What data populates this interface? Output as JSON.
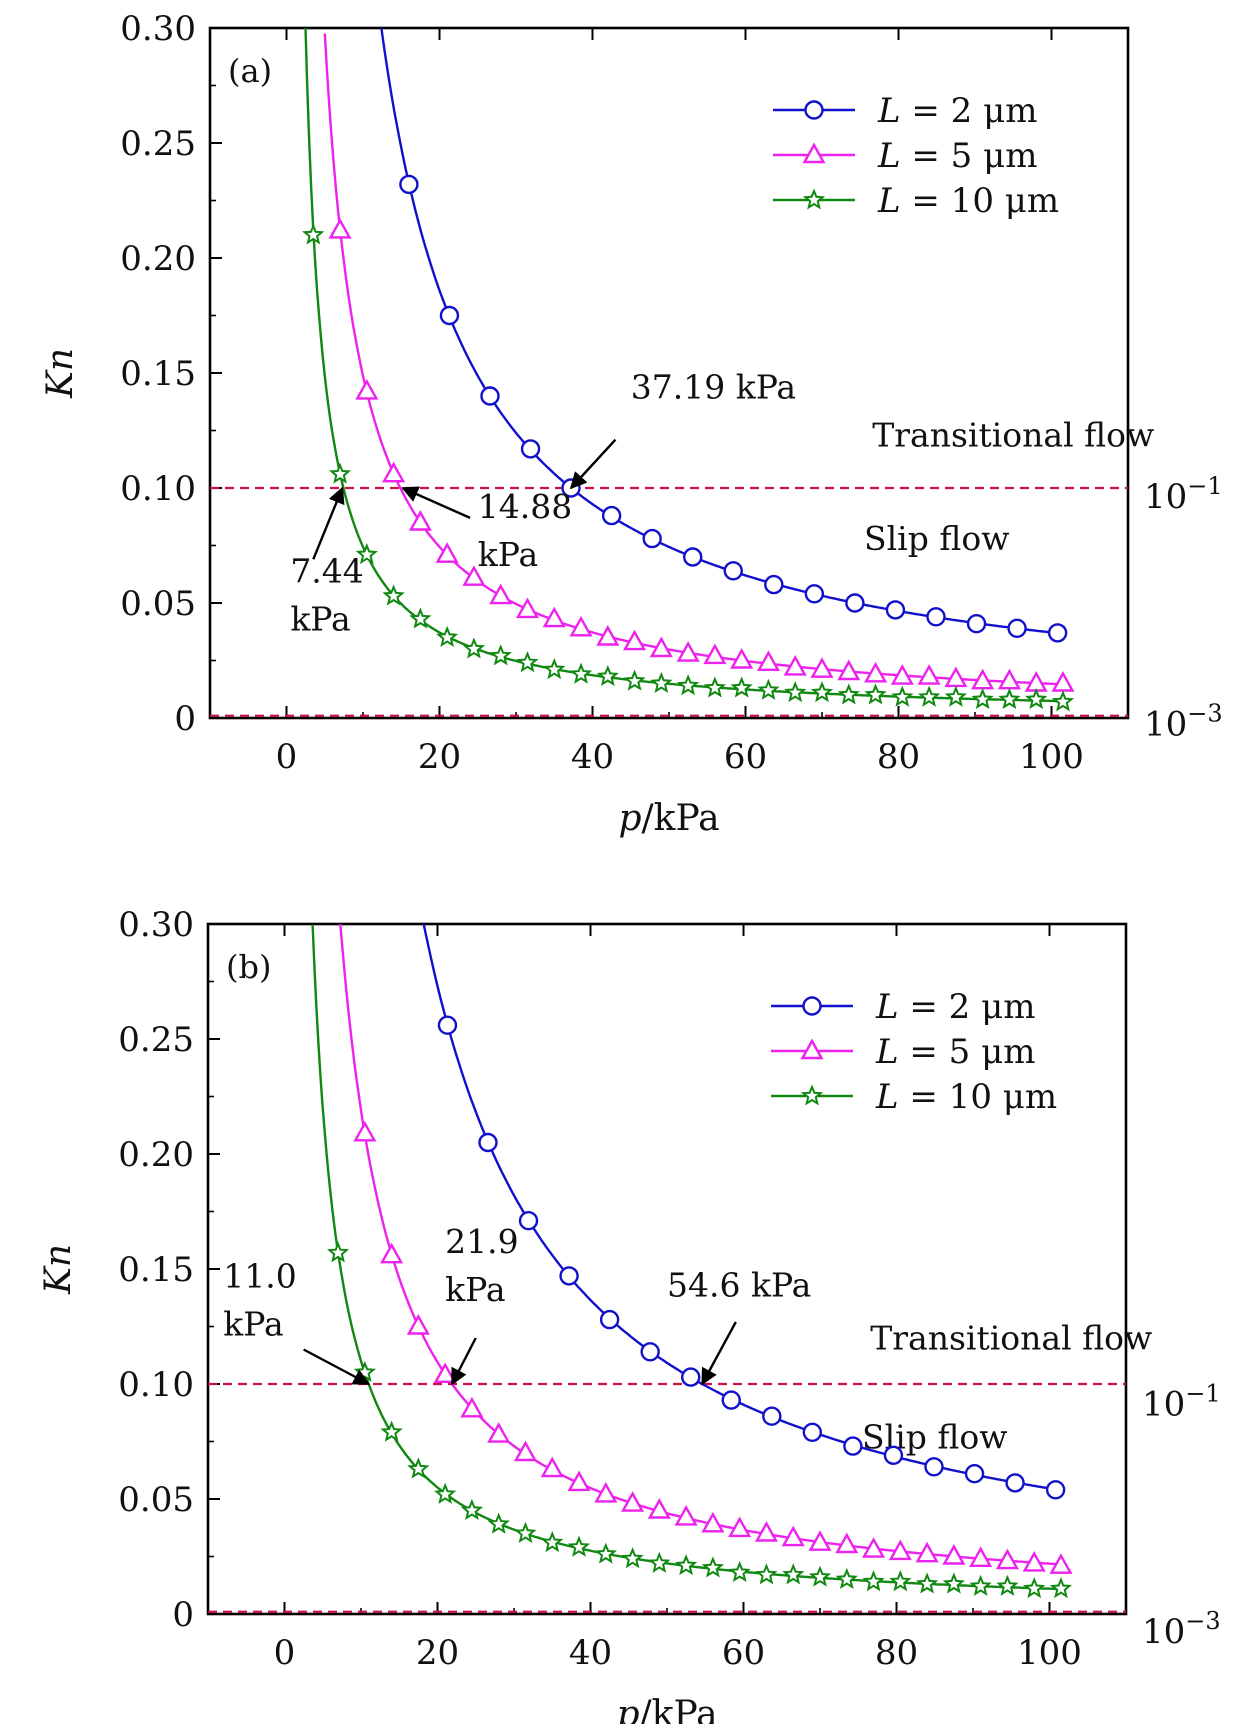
{
  "chart_data": [
    {
      "type": "line",
      "panel_label": "(a)",
      "xlabel": "p/kPa",
      "ylabel": "Kn",
      "xlim": [
        -10,
        110
      ],
      "ylim": [
        0,
        0.3
      ],
      "xticks": [
        "0",
        "20",
        "40",
        "60",
        "80",
        "100"
      ],
      "yticks": [
        "0",
        "0.05",
        "0.10",
        "0.15",
        "0.20",
        "0.25",
        "0.30"
      ],
      "right_labels": [
        {
          "base": "10",
          "exp": "−3",
          "y": 0.001
        },
        {
          "base": "10",
          "exp": "−1",
          "y": 0.1
        }
      ],
      "reference_lines": [
        0.1,
        0.001
      ],
      "legend_position": "top-right",
      "region_labels": [
        {
          "text": "Transitional flow",
          "x": 95,
          "y": 0.118
        },
        {
          "text": "Slip flow",
          "x": 85,
          "y": 0.073
        }
      ],
      "annotations": [
        {
          "lines": [
            "37.19 kPa"
          ],
          "text_x": 45,
          "text_y": 0.139,
          "point": [
            37.19,
            0.1
          ],
          "tail": [
            43,
            0.121
          ]
        },
        {
          "lines": [
            "14.88",
            "kPa"
          ],
          "text_x": 25,
          "text_y": 0.087,
          "point": [
            15.2,
            0.1
          ],
          "tail": [
            24,
            0.087
          ]
        },
        {
          "lines": [
            "7.44",
            "kPa"
          ],
          "text_x": 0.5,
          "text_y": 0.059,
          "point": [
            7.3,
            0.1
          ],
          "tail": [
            3.5,
            0.069
          ]
        }
      ],
      "series": [
        {
          "name": "L = 2 μm",
          "color": "#1111cc",
          "marker": "circle",
          "curve_k": 3.719,
          "curve_from": 12.4,
          "x": [
            16,
            21.3,
            26.6,
            31.9,
            37.19,
            42.5,
            47.8,
            53.1,
            58.4,
            63.7,
            69.0,
            74.3,
            79.6,
            84.9,
            90.2,
            95.5,
            100.8
          ],
          "y": [
            0.232,
            0.175,
            0.14,
            0.117,
            0.1,
            0.088,
            0.078,
            0.07,
            0.064,
            0.058,
            0.054,
            0.05,
            0.047,
            0.044,
            0.041,
            0.039,
            0.037
          ]
        },
        {
          "name": "L = 5 μm",
          "color": "#ee22ee",
          "marker": "triangle",
          "curve_k": 1.488,
          "curve_from": 5.0,
          "x": [
            7,
            10.5,
            14,
            17.5,
            21,
            24.5,
            28,
            31.5,
            35,
            38.5,
            42,
            45.5,
            49,
            52.5,
            56,
            59.5,
            63,
            66.5,
            70,
            73.5,
            77,
            80.5,
            84,
            87.5,
            91,
            94.5,
            98,
            101.5
          ],
          "y": [
            0.212,
            0.142,
            0.106,
            0.085,
            0.071,
            0.061,
            0.053,
            0.047,
            0.043,
            0.039,
            0.035,
            0.033,
            0.03,
            0.028,
            0.027,
            0.025,
            0.024,
            0.022,
            0.021,
            0.02,
            0.019,
            0.018,
            0.018,
            0.017,
            0.016,
            0.016,
            0.015,
            0.015
          ]
        },
        {
          "name": "L = 10 μm",
          "color": "#118811",
          "marker": "star",
          "curve_k": 0.744,
          "curve_from": 2.48,
          "x": [
            3.5,
            7,
            10.5,
            14,
            17.5,
            21,
            24.5,
            28,
            31.5,
            35,
            38.5,
            42,
            45.5,
            49,
            52.5,
            56,
            59.5,
            63,
            66.5,
            70,
            73.5,
            77,
            80.5,
            84,
            87.5,
            91,
            94.5,
            98,
            101.5
          ],
          "y": [
            0.21,
            0.106,
            0.071,
            0.053,
            0.043,
            0.035,
            0.03,
            0.027,
            0.024,
            0.021,
            0.019,
            0.018,
            0.016,
            0.015,
            0.014,
            0.013,
            0.013,
            0.012,
            0.011,
            0.011,
            0.01,
            0.01,
            0.009,
            0.009,
            0.009,
            0.008,
            0.008,
            0.008,
            0.007
          ]
        }
      ]
    },
    {
      "type": "line",
      "panel_label": "(b)",
      "xlabel": "p/kPa",
      "ylabel": "Kn",
      "xlim": [
        -10,
        110
      ],
      "ylim": [
        0,
        0.3
      ],
      "xticks": [
        "0",
        "20",
        "40",
        "60",
        "80",
        "100"
      ],
      "yticks": [
        "0",
        "0.05",
        "0.10",
        "0.15",
        "0.20",
        "0.25",
        "0.30"
      ],
      "right_labels": [
        {
          "base": "10",
          "exp": "−3",
          "y": -0.004
        },
        {
          "base": "10",
          "exp": "−1",
          "y": 0.095
        }
      ],
      "reference_lines": [
        0.1,
        0.001
      ],
      "legend_position": "top-right",
      "region_labels": [
        {
          "text": "Transitional flow",
          "x": 95,
          "y": 0.115
        },
        {
          "text": "Slip flow",
          "x": 85,
          "y": 0.072
        }
      ],
      "annotations": [
        {
          "lines": [
            "54.6 kPa"
          ],
          "text_x": 50,
          "text_y": 0.138,
          "point": [
            54.6,
            0.1
          ],
          "tail": [
            59,
            0.127
          ]
        },
        {
          "lines": [
            "21.9",
            "kPa"
          ],
          "text_x": 21,
          "text_y": 0.157,
          "point": [
            21.9,
            0.1
          ],
          "tail": [
            25,
            0.12
          ]
        },
        {
          "lines": [
            "11.0",
            "kPa"
          ],
          "text_x": -8,
          "text_y": 0.142,
          "point": [
            11,
            0.1
          ],
          "tail": [
            2.5,
            0.115
          ]
        }
      ],
      "series": [
        {
          "name": "L = 2 μm",
          "color": "#1111cc",
          "marker": "circle",
          "curve_k": 5.46,
          "curve_from": 18.2,
          "x": [
            21.3,
            26.6,
            31.9,
            37.2,
            42.5,
            47.8,
            53.1,
            58.4,
            63.7,
            69.0,
            74.3,
            79.6,
            84.9,
            90.2,
            95.5,
            100.8
          ],
          "y": [
            0.256,
            0.205,
            0.171,
            0.147,
            0.128,
            0.114,
            0.103,
            0.093,
            0.086,
            0.079,
            0.073,
            0.069,
            0.064,
            0.061,
            0.057,
            0.054
          ]
        },
        {
          "name": "L = 5 μm",
          "color": "#ee22ee",
          "marker": "triangle",
          "curve_k": 2.19,
          "curve_from": 7.3,
          "x": [
            10.5,
            14,
            17.5,
            21,
            24.5,
            28,
            31.5,
            35,
            38.5,
            42,
            45.5,
            49,
            52.5,
            56,
            59.5,
            63,
            66.5,
            70,
            73.5,
            77,
            80.5,
            84,
            87.5,
            91,
            94.5,
            98,
            101.5
          ],
          "y": [
            0.209,
            0.156,
            0.125,
            0.104,
            0.089,
            0.078,
            0.07,
            0.063,
            0.057,
            0.052,
            0.048,
            0.045,
            0.042,
            0.039,
            0.037,
            0.035,
            0.033,
            0.031,
            0.03,
            0.028,
            0.027,
            0.026,
            0.025,
            0.024,
            0.023,
            0.022,
            0.021
          ]
        },
        {
          "name": "L = 10 μm",
          "color": "#118811",
          "marker": "star",
          "curve_k": 1.1,
          "curve_from": 3.67,
          "x": [
            7,
            10.5,
            14,
            17.5,
            21,
            24.5,
            28,
            31.5,
            35,
            38.5,
            42,
            45.5,
            49,
            52.5,
            56,
            59.5,
            63,
            66.5,
            70,
            73.5,
            77,
            80.5,
            84,
            87.5,
            91,
            94.5,
            98,
            101.5
          ],
          "y": [
            0.157,
            0.105,
            0.079,
            0.063,
            0.052,
            0.045,
            0.039,
            0.035,
            0.031,
            0.029,
            0.026,
            0.024,
            0.022,
            0.021,
            0.02,
            0.018,
            0.017,
            0.017,
            0.016,
            0.015,
            0.014,
            0.014,
            0.013,
            0.013,
            0.012,
            0.012,
            0.011,
            0.011
          ]
        }
      ]
    }
  ]
}
